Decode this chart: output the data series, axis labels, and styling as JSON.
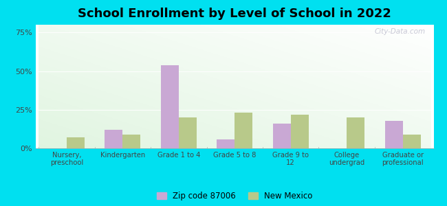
{
  "title": "School Enrollment by Level of School in 2022",
  "categories": [
    "Nursery,\npreschool",
    "Kindergarten",
    "Grade 1 to 4",
    "Grade 5 to 8",
    "Grade 9 to\n12",
    "College\nundergrad",
    "Graduate or\nprofessional"
  ],
  "zip_values": [
    0,
    12,
    54,
    6,
    16,
    0,
    18
  ],
  "nm_values": [
    7,
    9,
    20,
    23,
    22,
    20,
    9
  ],
  "zip_color": "#c9a8d4",
  "nm_color": "#b8c98a",
  "background_outer": "#00e0f0",
  "ylim": [
    0,
    80
  ],
  "yticks": [
    0,
    25,
    50,
    75
  ],
  "yticklabels": [
    "0%",
    "25%",
    "50%",
    "75%"
  ],
  "legend_zip_label": "Zip code 87006",
  "legend_nm_label": "New Mexico",
  "bar_width": 0.32,
  "title_fontsize": 13,
  "watermark": "City-Data.com"
}
